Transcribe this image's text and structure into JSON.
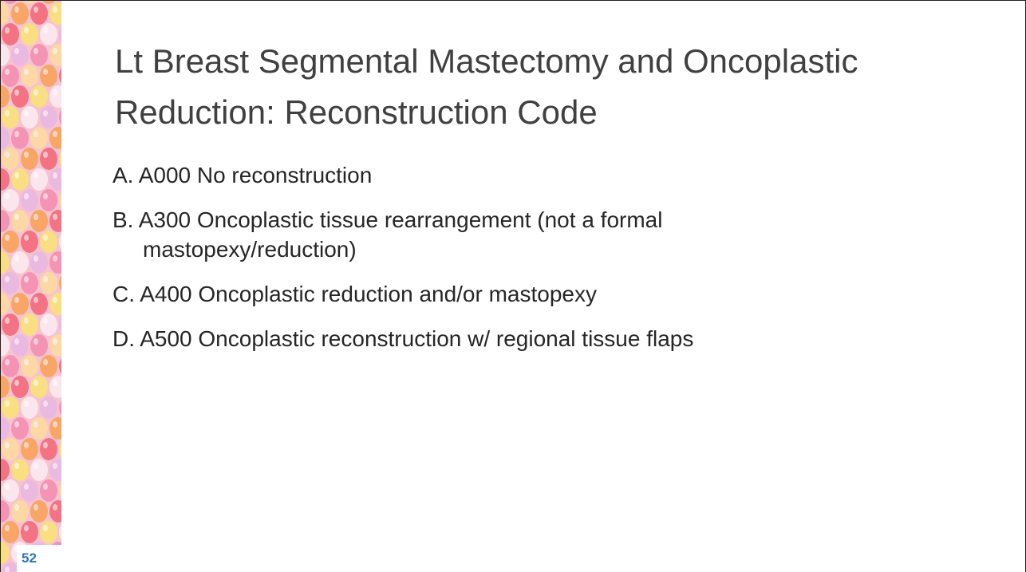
{
  "slide": {
    "title": "Lt Breast Segmental Mastectomy and Oncoplastic Reduction: Reconstruction Code",
    "items": [
      "A. A000 No reconstruction",
      "B. A300 Oncoplastic tissue rearrangement (not a formal mastopexy/reduction)",
      "C.  A400 Oncoplastic reduction and/or mastopexy",
      "D.  A500 Oncoplastic reconstruction w/ regional tissue flaps"
    ],
    "slide_number": "52"
  }
}
